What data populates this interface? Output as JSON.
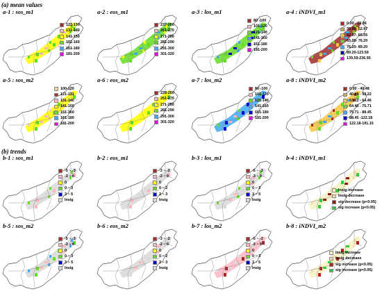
{
  "sections": {
    "mean_values": "(a) mean values",
    "trends": "(b) trends"
  },
  "panels": [
    {
      "id": "a-1",
      "title": "a-1 : sos_m1",
      "legend": [
        {
          "label": "122-130",
          "color": "#a52a2a"
        },
        {
          "label": "131-140",
          "color": "#ffb6c1"
        },
        {
          "label": "141-150",
          "color": "#ffff00"
        },
        {
          "label": "151-160",
          "color": "#66dd22"
        },
        {
          "label": "161-180",
          "color": "#3fa9f5"
        },
        {
          "label": "181-200",
          "color": "#ee00ee"
        }
      ]
    },
    {
      "id": "a-2",
      "title": "a-2 : eos_m1",
      "legend": [
        {
          "label": "237-260",
          "color": "#a52a2a"
        },
        {
          "label": "261-270",
          "color": "#ffb6c1"
        },
        {
          "label": "271-280",
          "color": "#ffff00"
        },
        {
          "label": "281-290",
          "color": "#66dd22"
        },
        {
          "label": "291-300",
          "color": "#3fa9f5"
        },
        {
          "label": "301-320",
          "color": "#ee00ee"
        }
      ]
    },
    {
      "id": "a-3",
      "title": "a-3 : los_m1",
      "legend": [
        {
          "label": "80 -100",
          "color": "#a52a2a"
        },
        {
          "label": "101-120",
          "color": "#ffb6c1"
        },
        {
          "label": "121-140",
          "color": "#66dd22"
        },
        {
          "label": "141-160",
          "color": "#3fa9f5"
        },
        {
          "label": "161-180",
          "color": "#0000cc"
        },
        {
          "label": "181-200",
          "color": "#ee00ee"
        }
      ]
    },
    {
      "id": "a-4",
      "title": "a-4 : iNDVI_m1",
      "legend": [
        {
          "label": "0.00 - 39.96",
          "color": "#a52a2a"
        },
        {
          "label": "39.96- 52.97",
          "color": "#c8a850"
        },
        {
          "label": "52.97- 65.05",
          "color": "#f2c744"
        },
        {
          "label": "65.05- 76.20",
          "color": "#66dd22"
        },
        {
          "label": "76.20- 89.20",
          "color": "#3fa9f5"
        },
        {
          "label": "89.20-123.59",
          "color": "#0000cc"
        },
        {
          "label": "139.59-236.95",
          "color": "#ee00ee"
        }
      ]
    },
    {
      "id": "a-5",
      "title": "a-5 : sos_m2",
      "legend": [
        {
          "label": "100-120",
          "color": "#e8d5a0"
        },
        {
          "label": "121-131",
          "color": "#a52a2a"
        },
        {
          "label": "131-140",
          "color": "#ffb6c1"
        },
        {
          "label": "141-150",
          "color": "#ffff00"
        },
        {
          "label": "151-160",
          "color": "#66dd22"
        },
        {
          "label": "161-180",
          "color": "#3fa9f5"
        },
        {
          "label": "181-200",
          "color": "#ee00ee"
        }
      ]
    },
    {
      "id": "a-6",
      "title": "a-6 : eos_m2",
      "legend": [
        {
          "label": "228-260",
          "color": "#a52a2a"
        },
        {
          "label": "261-270",
          "color": "#ffb6c1"
        },
        {
          "label": "271-280",
          "color": "#ffff00"
        },
        {
          "label": "281-290",
          "color": "#66dd22"
        },
        {
          "label": "291-300",
          "color": "#3fa9f5"
        },
        {
          "label": "301-320",
          "color": "#ee00ee"
        }
      ]
    },
    {
      "id": "a-7",
      "title": "a-7 : los_m2",
      "legend": [
        {
          "label": "80 -100",
          "color": "#a52a2a"
        },
        {
          "label": "101-120",
          "color": "#ffb6c1"
        },
        {
          "label": "121-140",
          "color": "#66dd22"
        },
        {
          "label": "141-160",
          "color": "#3fa9f5"
        },
        {
          "label": "161-180",
          "color": "#0000cc"
        },
        {
          "label": "181-200",
          "color": "#ee00ee"
        }
      ]
    },
    {
      "id": "a-8",
      "title": "a-8 : iNDVI_m2",
      "legend": [
        {
          "label": "0.00 - 40.48",
          "color": "#a52a2a"
        },
        {
          "label": "40.48 - 53.22",
          "color": "#c8a850"
        },
        {
          "label": "53.22 - 64.46",
          "color": "#f2c744"
        },
        {
          "label": "64.46 - 75.71",
          "color": "#66dd22"
        },
        {
          "label": "75.71 - 88.45",
          "color": "#3fa9f5"
        },
        {
          "label": "88.45 -122.18",
          "color": "#0000cc"
        },
        {
          "label": "122.18-191.15",
          "color": "#ee00ee"
        }
      ]
    },
    {
      "id": "b-1",
      "title": "b-1 : sos_m1",
      "legend": [
        {
          "label": "-5 ~ -3",
          "color": "#a52a2a"
        },
        {
          "label": "-3 ~ 0",
          "color": "#ffb6c1"
        },
        {
          "label": "0",
          "color": "#ffff00"
        },
        {
          "label": "0 ~ 3",
          "color": "#66dd22"
        },
        {
          "label": "3 ~ 5",
          "color": "#0000cc"
        },
        {
          "label": "Insig",
          "color": "#d9d9d9"
        }
      ]
    },
    {
      "id": "b-2",
      "title": "b-2 : eos_m1",
      "legend": [
        {
          "label": "-3 ~ -2",
          "color": "#a52a2a"
        },
        {
          "label": "-2 ~ 0",
          "color": "#ffb6c1"
        },
        {
          "label": "0",
          "color": "#ffff00"
        },
        {
          "label": "0 ~ 2",
          "color": "#66dd22"
        },
        {
          "label": "2 ~ 3",
          "color": "#0000cc"
        },
        {
          "label": "Insig",
          "color": "#d9d9d9"
        }
      ]
    },
    {
      "id": "b-3",
      "title": "b-3 : los_m1",
      "legend": [
        {
          "label": "-5 ~ -3",
          "color": "#a52a2a"
        },
        {
          "label": "-3 ~ 0",
          "color": "#ffb6c1"
        },
        {
          "label": "0",
          "color": "#ffff00"
        },
        {
          "label": "0 ~ 3",
          "color": "#66dd22"
        },
        {
          "label": "3 ~ 5",
          "color": "#0000cc"
        },
        {
          "label": "Insig",
          "color": "#d9d9d9"
        }
      ]
    },
    {
      "id": "b-4",
      "title": "b-4 : iNDVI_m1",
      "legend": [
        {
          "label": "Insig  increase",
          "color": "#f5f0c0"
        },
        {
          "label": "Insig  decrease",
          "color": "#f6d9b0"
        },
        {
          "label": "sig  decrease  (p<0.05)",
          "color": "#8b1a1a"
        },
        {
          "label": "sig  increase  (p<0.05)",
          "color": "#2ecc40"
        }
      ]
    },
    {
      "id": "b-5",
      "title": "b-5 : sos_m2",
      "legend": [
        {
          "label": "-5 ~ -3",
          "color": "#a52a2a"
        },
        {
          "label": "-3 ~ 0",
          "color": "#ffb6c1"
        },
        {
          "label": "0",
          "color": "#ffff00"
        },
        {
          "label": "0 ~ 3",
          "color": "#66dd22"
        },
        {
          "label": "3 ~ 5",
          "color": "#0000cc"
        },
        {
          "label": "Insig",
          "color": "#d9d9d9"
        }
      ]
    },
    {
      "id": "b-6",
      "title": "b-6 : eos_m2",
      "legend": [
        {
          "label": "-3 ~ -2",
          "color": "#a52a2a"
        },
        {
          "label": "-2 ~ 0",
          "color": "#ffb6c1"
        },
        {
          "label": "0",
          "color": "#ffff00"
        },
        {
          "label": "0 ~ 2",
          "color": "#66dd22"
        },
        {
          "label": "2 ~ 3",
          "color": "#0000cc"
        },
        {
          "label": "Insig",
          "color": "#d9d9d9"
        }
      ]
    },
    {
      "id": "b-7",
      "title": "b-7 : los_m2",
      "legend": [
        {
          "label": "-5 ~ -3",
          "color": "#a52a2a"
        },
        {
          "label": "-3 ~ 0",
          "color": "#ffb6c1"
        },
        {
          "label": "0",
          "color": "#ffff00"
        },
        {
          "label": "0 ~ 3",
          "color": "#66dd22"
        },
        {
          "label": "3 ~ 5",
          "color": "#0000cc"
        },
        {
          "label": "Insig",
          "color": "#d9d9d9"
        }
      ]
    },
    {
      "id": "b-8",
      "title": "b-8 : iNDVI_m2",
      "legend": [
        {
          "label": "Insig  increase",
          "color": "#f5f0c0"
        },
        {
          "label": "Insig  decrease",
          "color": "#f6d9b0"
        },
        {
          "label": "sig  increase  (p<0.05)",
          "color": "#b22222"
        },
        {
          "label": "sig  increase  (p<0.05)",
          "color": "#2ecc40"
        }
      ]
    }
  ]
}
